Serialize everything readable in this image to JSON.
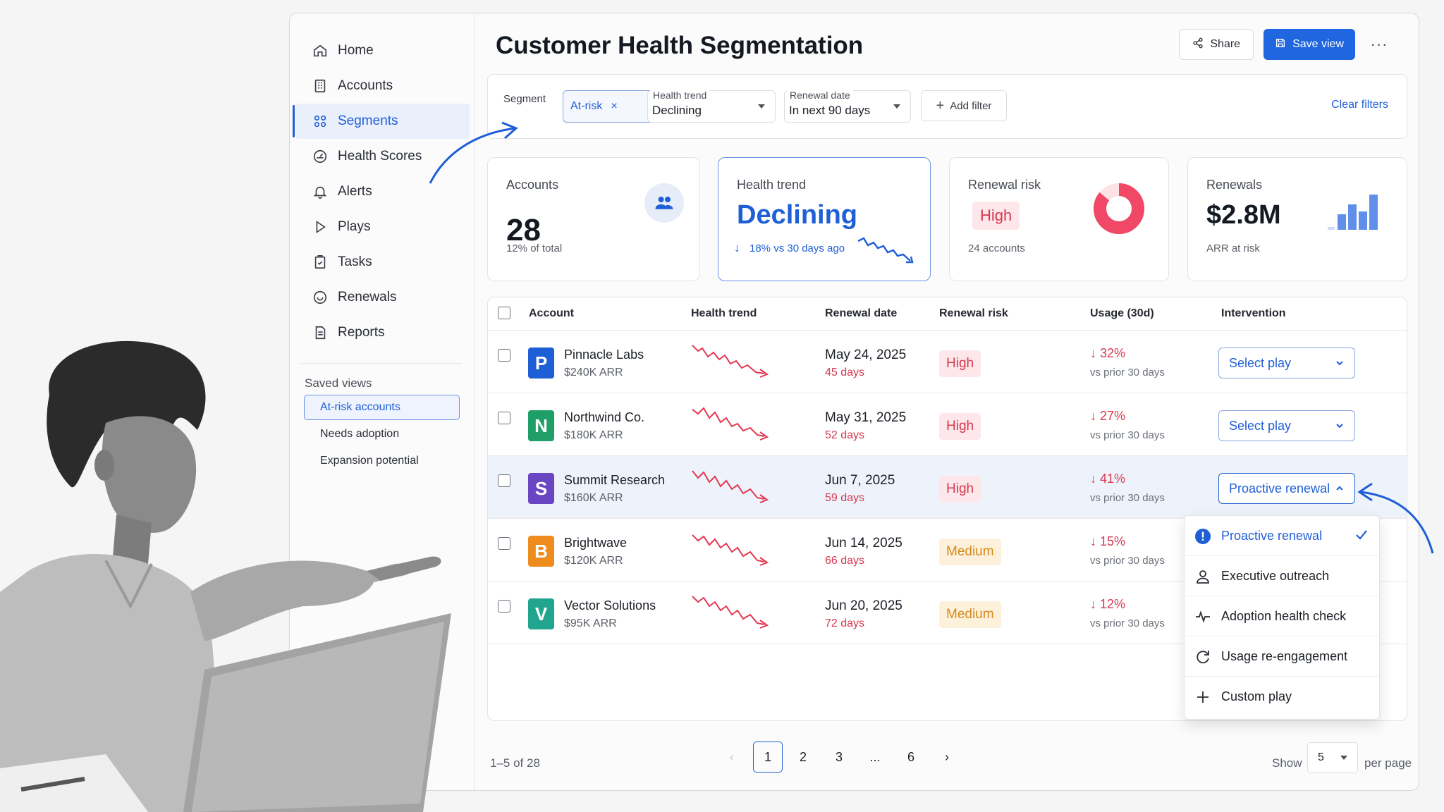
{
  "sidebar": {
    "items": [
      {
        "label": "Home",
        "icon": "home-icon"
      },
      {
        "label": "Accounts",
        "icon": "building-icon"
      },
      {
        "label": "Segments",
        "icon": "grid-icon",
        "active": true
      },
      {
        "label": "Health Scores",
        "icon": "gauge-icon"
      },
      {
        "label": "Alerts",
        "icon": "bell-icon"
      },
      {
        "label": "Plays",
        "icon": "play-icon"
      },
      {
        "label": "Tasks",
        "icon": "clipboard-icon"
      },
      {
        "label": "Renewals",
        "icon": "refresh-icon"
      },
      {
        "label": "Reports",
        "icon": "document-icon"
      }
    ],
    "saved_views_title": "Saved views",
    "saved_views": [
      "At-risk accounts",
      "Needs adoption",
      "Expansion potential"
    ]
  },
  "header": {
    "title": "Customer Health Segmentation",
    "share_label": "Share",
    "save_label": "Save view",
    "more_label": "···"
  },
  "filters": {
    "segment_label": "Segment",
    "segment_chip": "At-risk",
    "segment_chip_remove": "×",
    "health_trend_label": "Health trend",
    "health_trend_value": "Declining",
    "renewal_date_label": "Renewal date",
    "renewal_date_value": "In next 90 days",
    "add_filter_label": "Add filter",
    "clear_label": "Clear filters"
  },
  "kpis": {
    "accounts": {
      "title": "Accounts",
      "value": "28",
      "sub": "12% of total"
    },
    "health_trend": {
      "title": "Health trend",
      "value": "Declining",
      "sub": "18% vs 30 days ago"
    },
    "renewal_risk": {
      "title": "Renewal risk",
      "value": "High",
      "sub": "24 accounts",
      "donut_fraction": 0.86
    },
    "renewals": {
      "title": "Renewals",
      "value": "$2.8M",
      "sub": "ARR at risk"
    }
  },
  "table": {
    "columns": [
      "Account",
      "Health trend",
      "Renewal date",
      "Renewal risk",
      "Usage (30d)",
      "Intervention"
    ],
    "rows": [
      {
        "letter": "P",
        "color": "#1f5fd6",
        "name": "Pinnacle Labs",
        "arr": "$240K ARR",
        "date": "May 24, 2025",
        "days": "45 days",
        "risk": "High",
        "usage": "32%",
        "usage_sub": "vs prior 30 days",
        "intervention": "Select play"
      },
      {
        "letter": "N",
        "color": "#1f9e68",
        "name": "Northwind Co.",
        "arr": "$180K ARR",
        "date": "May 31, 2025",
        "days": "52 days",
        "risk": "High",
        "usage": "27%",
        "usage_sub": "vs prior 30 days",
        "intervention": "Select play"
      },
      {
        "letter": "S",
        "color": "#6a46c2",
        "name": "Summit Research",
        "arr": "$160K ARR",
        "date": "Jun 7, 2025",
        "days": "59 days",
        "risk": "High",
        "usage": "41%",
        "usage_sub": "vs prior 30 days",
        "intervention": "Proactive renewal"
      },
      {
        "letter": "B",
        "color": "#ef8c1e",
        "name": "Brightwave",
        "arr": "$120K ARR",
        "date": "Jun 14, 2025",
        "days": "66 days",
        "risk": "Medium",
        "usage": "15%",
        "usage_sub": "vs prior 30 days",
        "intervention": ""
      },
      {
        "letter": "V",
        "color": "#21a58f",
        "name": "Vector Solutions",
        "arr": "$95K ARR",
        "date": "Jun 20, 2025",
        "days": "72 days",
        "risk": "Medium",
        "usage": "12%",
        "usage_sub": "vs prior 30 days",
        "intervention": ""
      }
    ]
  },
  "intervention_menu": {
    "items": [
      {
        "label": "Proactive renewal",
        "icon": "alert-circle-icon",
        "selected": true
      },
      {
        "label": "Executive outreach",
        "icon": "person-icon"
      },
      {
        "label": "Adoption health check",
        "icon": "pulse-icon"
      },
      {
        "label": "Usage re-engagement",
        "icon": "refresh-icon"
      },
      {
        "label": "Custom play",
        "icon": "plus-icon"
      }
    ]
  },
  "pagination": {
    "info": "1–5 of 28",
    "pages": [
      "1",
      "2",
      "3",
      "...",
      "6"
    ],
    "current": "1",
    "show_label": "Show",
    "per_page_value": "5",
    "per_page_label": "per page"
  },
  "colors": {
    "accent": "#1f66e0",
    "danger": "#d6384f",
    "warning": "#d58a1c"
  }
}
